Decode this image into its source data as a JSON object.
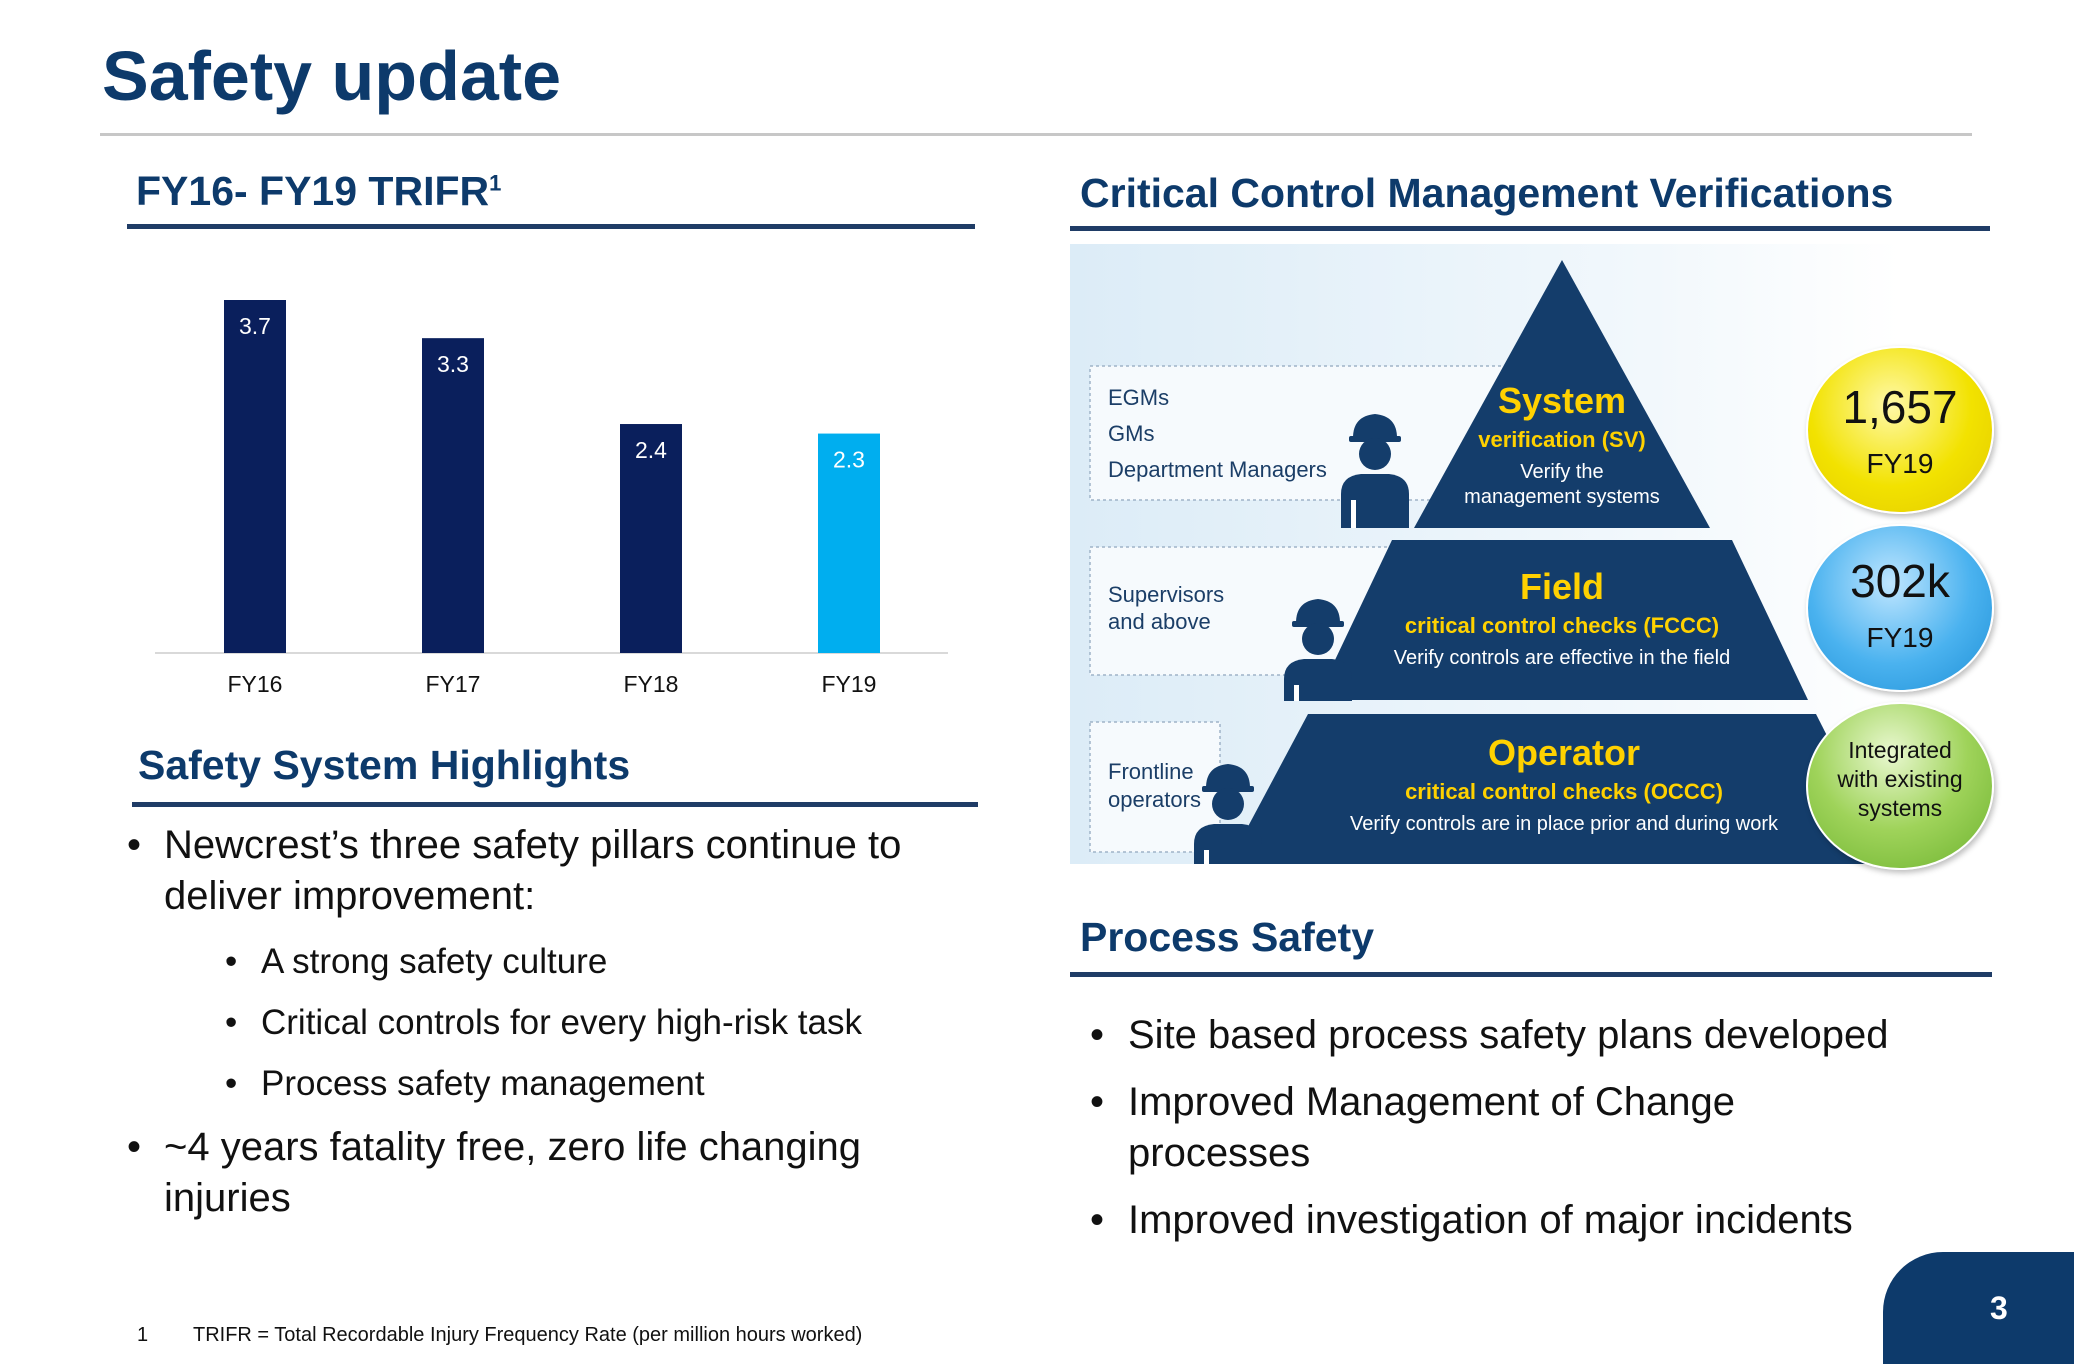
{
  "title": "Safety update",
  "trifr": {
    "heading": "FY16- FY19 TRIFR",
    "superscript": "1"
  },
  "chart_data": {
    "type": "bar",
    "categories": [
      "FY16",
      "FY17",
      "FY18",
      "FY19"
    ],
    "values": [
      3.7,
      3.3,
      2.4,
      2.3
    ],
    "value_labels": [
      "3.7",
      "3.3",
      "2.4",
      "2.3"
    ],
    "colors": [
      "#0a1f5c",
      "#0a1f5c",
      "#0a1f5c",
      "#00aeef"
    ],
    "ylim": [
      0,
      3.7
    ],
    "grid": false,
    "xlabel": "",
    "ylabel": ""
  },
  "highlights": {
    "heading": "Safety System Highlights",
    "bullet1": "Newcrest’s three safety pillars continue to deliver improvement:",
    "bullet1_line1": "Newcrest’s three safety pillars continue to",
    "bullet1_line2": "deliver improvement:",
    "sub": [
      "A strong safety culture",
      "Critical controls for every high-risk task",
      "Process safety management"
    ],
    "bullet2_line1": "~4 years fatality free, zero life changing",
    "bullet2_line2": "injuries",
    "bullet_char": "•"
  },
  "ccm": {
    "heading": "Critical Control Management Verifications",
    "tiers": [
      {
        "roles": [
          "EGMs",
          "GMs",
          "Department Managers"
        ],
        "name": "System",
        "sub": "verification (SV)",
        "desc1": "Verify the",
        "desc2": "management systems"
      },
      {
        "roles": [
          "Supervisors",
          "and above"
        ],
        "name": "Field",
        "sub": "critical control checks (FCCC)",
        "desc1": "Verify controls are effective in the field",
        "desc2": ""
      },
      {
        "roles": [
          "Frontline",
          "operators"
        ],
        "name": "Operator",
        "sub": "critical control checks (OCCC)",
        "desc1": "Verify controls are in place prior and during work",
        "desc2": ""
      }
    ],
    "circles": [
      {
        "line1": "1,657",
        "line2": "FY19",
        "color": "#f5e800"
      },
      {
        "line1": "302k",
        "line2": "FY19",
        "color": "#2ea6e6"
      },
      {
        "line1": "Integrated",
        "line2": "with existing",
        "line3": "systems",
        "color": "#7fc242"
      }
    ]
  },
  "process": {
    "heading": "Process Safety",
    "items": [
      "Site based process safety plans developed",
      "Improved Management of Change",
      "processes",
      "Improved investigation of major incidents"
    ]
  },
  "footnote": {
    "number": "1",
    "text": "TRIFR = Total Recordable Injury Frequency Rate (per million hours worked)"
  },
  "page_number": "3"
}
